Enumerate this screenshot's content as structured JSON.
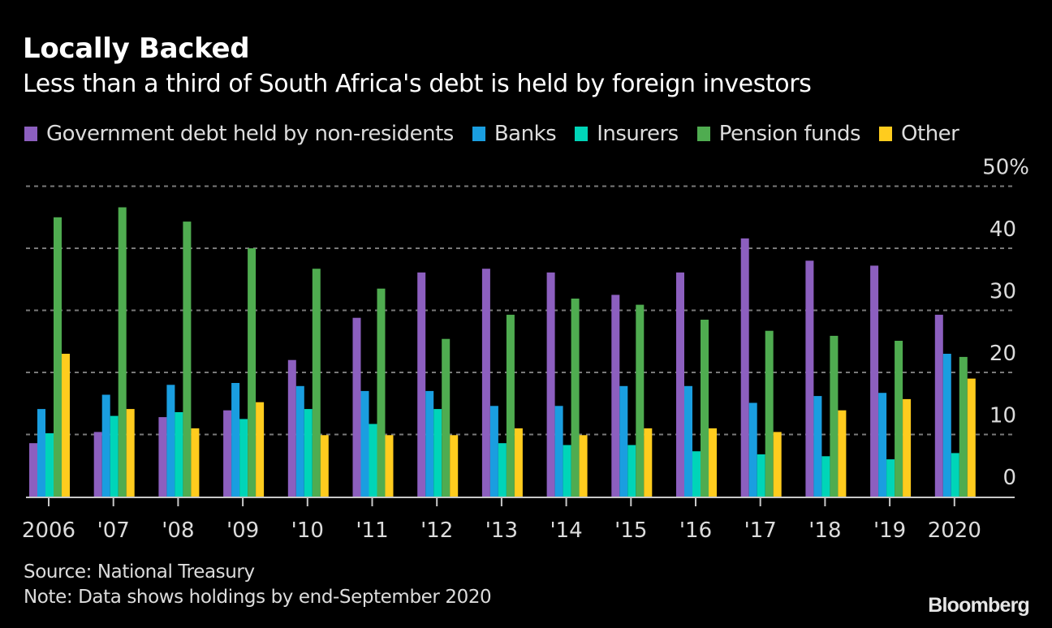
{
  "header": {
    "title": "Locally Backed",
    "subtitle": "Less than a third of South Africa's debt is held by foreign investors"
  },
  "footer": {
    "source": "Source: National Treasury",
    "note": "Note: Data shows holdings by end-September 2020",
    "brand": "Bloomberg"
  },
  "chart_data": {
    "type": "bar",
    "title": "Locally Backed",
    "subtitle": "Less than a third of South Africa's debt is held by foreign investors",
    "xlabel": "",
    "ylabel": "",
    "ylim": [
      0,
      50
    ],
    "yticks": [
      0,
      10,
      20,
      30,
      40,
      50
    ],
    "ytick_labels": [
      "0",
      "10",
      "20",
      "30",
      "40",
      "50%"
    ],
    "y_axis_side": "right",
    "grid": true,
    "legend_position": "top",
    "categories": [
      "2006",
      "'07",
      "'08",
      "'09",
      "'10",
      "'11",
      "'12",
      "'13",
      "'14",
      "'15",
      "'16",
      "'17",
      "'18",
      "'19",
      "2020"
    ],
    "series": [
      {
        "name": "Government debt held by non-residents",
        "color": "#8c5fbf",
        "values": [
          8.6,
          10.4,
          12.8,
          13.9,
          22.0,
          28.8,
          36.1,
          36.7,
          36.1,
          32.5,
          36.1,
          41.6,
          38.0,
          37.2,
          29.3
        ]
      },
      {
        "name": "Banks",
        "color": "#1a9ee0",
        "values": [
          14.1,
          16.4,
          18.0,
          18.3,
          17.8,
          17.0,
          17.0,
          14.6,
          14.6,
          17.8,
          17.8,
          15.1,
          16.2,
          16.7,
          23.0
        ]
      },
      {
        "name": "Insurers",
        "color": "#00d5b8",
        "values": [
          10.2,
          13.0,
          13.6,
          12.5,
          14.1,
          11.7,
          14.1,
          8.6,
          8.3,
          8.3,
          7.3,
          6.8,
          6.5,
          6.0,
          7.0
        ]
      },
      {
        "name": "Pension funds",
        "color": "#4fac50",
        "values": [
          45.0,
          46.6,
          44.3,
          40.0,
          36.7,
          33.5,
          25.4,
          29.3,
          31.9,
          30.9,
          28.5,
          26.7,
          25.9,
          25.1,
          22.5
        ]
      },
      {
        "name": "Other",
        "color": "#ffcc1e",
        "values": [
          23.0,
          14.1,
          11.0,
          15.2,
          9.9,
          9.9,
          9.9,
          11.0,
          9.9,
          11.0,
          11.0,
          10.4,
          13.9,
          15.7,
          19.0
        ]
      }
    ]
  }
}
